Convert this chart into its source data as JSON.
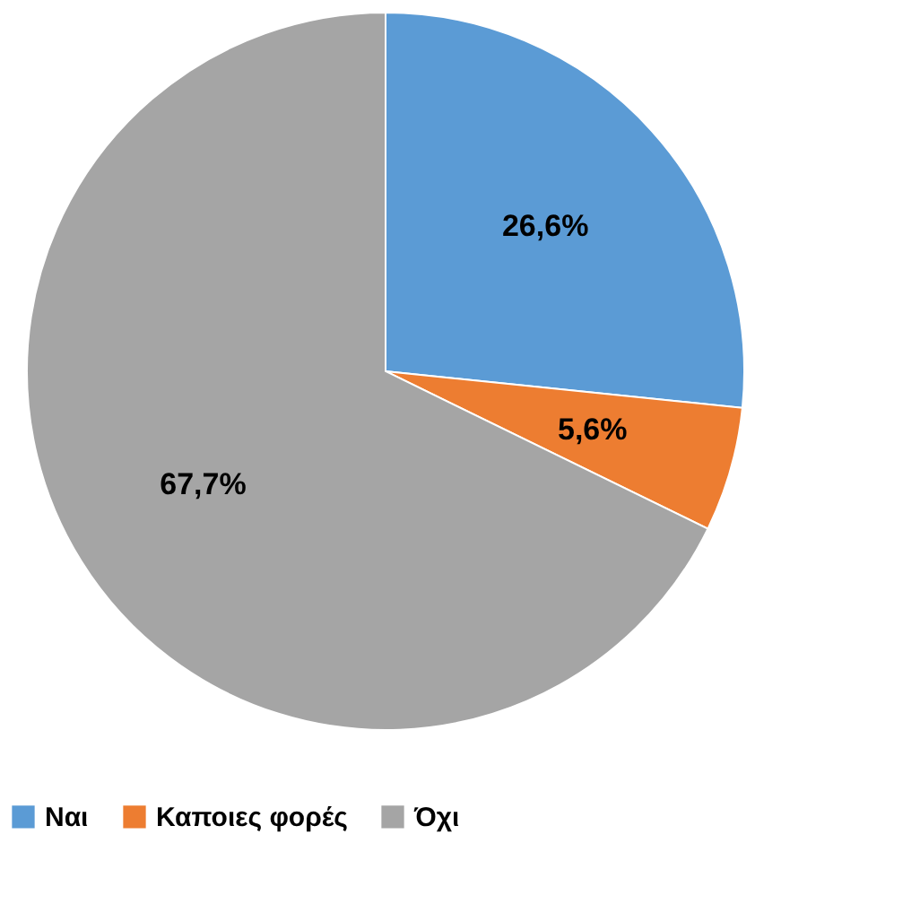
{
  "chart_data": {
    "type": "pie",
    "categories": [
      "Ναι",
      "Καποιες φορές",
      "Όχι"
    ],
    "values": [
      26.6,
      5.6,
      67.7
    ],
    "colors": [
      "#5b9bd5",
      "#ed7d31",
      "#a5a5a5"
    ],
    "value_labels": [
      "26,6%",
      "5,6%",
      "67,7%"
    ],
    "legend": "bottom"
  }
}
